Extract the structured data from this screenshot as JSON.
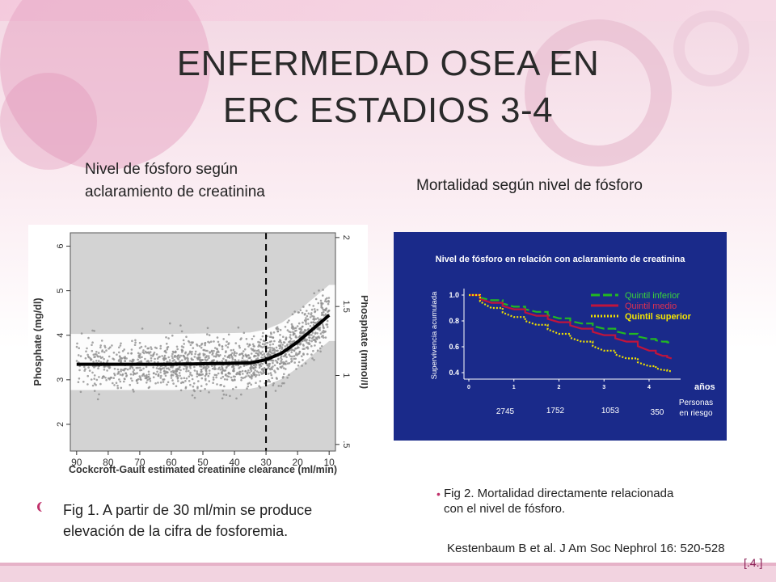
{
  "slide": {
    "title_line1": "ENFERMEDAD OSEA EN",
    "title_line2": "ERC ESTADIOS 3-4",
    "left_heading_line1": "Nivel de fósforo según",
    "left_heading_line2": "aclaramiento de creatinina",
    "right_heading": "Mortalidad según nivel de fósforo",
    "left_caption_line1": "Fig 1. A partir de 30 ml/min se produce",
    "left_caption_line2": "elevación de la cifra de fosforemia.",
    "right_caption_line1": "Fig 2. Mortalidad directamente relacionada",
    "right_caption_line2": "con el nivel de fósforo.",
    "reference": "Kestenbaum B et al. J Am Soc Nephrol 16: 520-528",
    "page_number": "[.4.]",
    "colors": {
      "accent": "#c0306a",
      "chart2_bg": "#1a2a8a",
      "inferior": "#22b822",
      "medio": "#c0143c",
      "superior": "#f0e000"
    }
  },
  "chart_data": [
    {
      "type": "scatter",
      "xlabel": "Cockcroft-Gault estimated creatinine clearance (ml/min)",
      "ylabel": "Phosphate (mg/dl)",
      "y2label": "Phosphate (mmol/l)",
      "x_ticks": [
        "90",
        "80",
        "70",
        "60",
        "50",
        "40",
        "30",
        "20",
        "10"
      ],
      "y_ticks": [
        "2",
        "3",
        "4",
        "5",
        "6"
      ],
      "y2_ticks": [
        ".5",
        "1",
        "1.5",
        "2"
      ],
      "xlim": [
        92,
        8
      ],
      "ylim": [
        1.4,
        6.3
      ],
      "vline_x": 30,
      "fit": {
        "x": [
          90,
          80,
          70,
          60,
          50,
          40,
          35,
          30,
          25,
          20,
          15,
          10
        ],
        "y": [
          3.35,
          3.35,
          3.35,
          3.35,
          3.36,
          3.37,
          3.38,
          3.45,
          3.6,
          3.85,
          4.15,
          4.45
        ]
      }
    },
    {
      "type": "line",
      "title": "Nivel de fósforo en relación con aclaramiento de creatinina",
      "ylabel": "Supervivencia acumulada",
      "xlabel": "años",
      "x_ticks": [
        "0",
        "1",
        "2",
        "3",
        "4"
      ],
      "y_ticks": [
        "1.0",
        "0.8",
        "0.6",
        "0.4"
      ],
      "xlim": [
        0,
        4.7
      ],
      "ylim": [
        0.35,
        1.05
      ],
      "series": [
        {
          "name": "Quintil inferior",
          "x": [
            0,
            0.5,
            1,
            1.5,
            2,
            2.5,
            3,
            3.5,
            4,
            4.3,
            4.5
          ],
          "y": [
            1.0,
            0.96,
            0.91,
            0.87,
            0.82,
            0.78,
            0.74,
            0.7,
            0.66,
            0.64,
            0.63
          ]
        },
        {
          "name": "Quintil medio",
          "x": [
            0,
            0.5,
            1,
            1.5,
            2,
            2.5,
            3,
            3.5,
            4,
            4.3,
            4.5
          ],
          "y": [
            1.0,
            0.94,
            0.89,
            0.84,
            0.79,
            0.74,
            0.69,
            0.64,
            0.57,
            0.53,
            0.51
          ]
        },
        {
          "name": "Quintil superior",
          "x": [
            0,
            0.5,
            1,
            1.5,
            2,
            2.5,
            3,
            3.5,
            4,
            4.3,
            4.5
          ],
          "y": [
            1.0,
            0.9,
            0.83,
            0.77,
            0.7,
            0.64,
            0.57,
            0.51,
            0.45,
            0.42,
            0.41
          ]
        }
      ],
      "at_risk_label_line1": "Personas",
      "at_risk_label_line2": "en riesgo",
      "at_risk": [
        "2745",
        "1752",
        "1053",
        "350"
      ]
    }
  ]
}
